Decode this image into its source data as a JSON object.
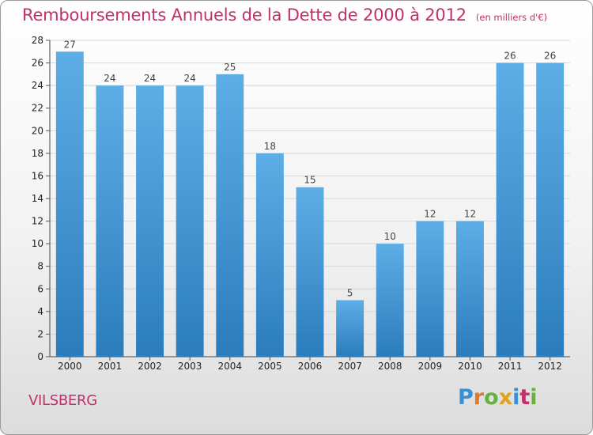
{
  "header": {
    "title": "Remboursements Annuels de la Dette de 2000 à 2012",
    "subtitle": "(en milliers d'€)"
  },
  "footer": {
    "place": "VILSBERG",
    "brand": "Proxiti"
  },
  "colors": {
    "title": "#c0306a",
    "bar_light": "#5daee6",
    "bar_dark": "#2b7cbc",
    "brand_letters": [
      "#3a8fd0",
      "#e07a2a",
      "#6ab040",
      "#e0a020",
      "#3a8fd0",
      "#c0306a",
      "#6ab040"
    ]
  },
  "chart_data": {
    "type": "bar",
    "categories": [
      "2000",
      "2001",
      "2002",
      "2003",
      "2004",
      "2005",
      "2006",
      "2007",
      "2008",
      "2009",
      "2010",
      "2011",
      "2012"
    ],
    "values": [
      27,
      24,
      24,
      24,
      25,
      18,
      15,
      5,
      10,
      12,
      12,
      26,
      26
    ],
    "ylim": [
      0,
      28
    ],
    "yticks": [
      0,
      2,
      4,
      6,
      8,
      10,
      12,
      14,
      16,
      18,
      20,
      22,
      24,
      26,
      28
    ],
    "grid": true,
    "title": "Remboursements Annuels de la Dette de 2000 à 2012",
    "xlabel": "",
    "ylabel": ""
  }
}
